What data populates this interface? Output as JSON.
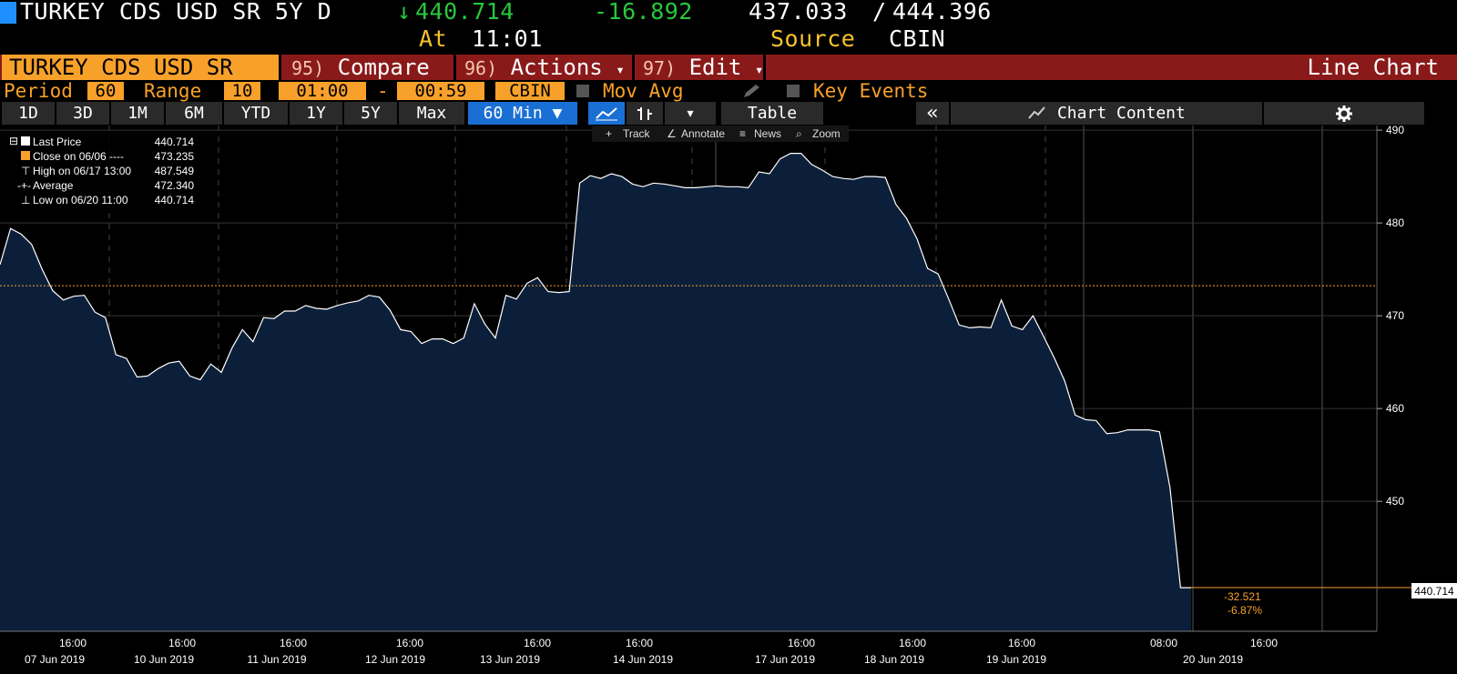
{
  "header": {
    "security": "TURKEY CDS USD SR 5Y D",
    "arrow": "↓",
    "last": "440.714",
    "change": "-16.892",
    "low": "437.033",
    "slash": "/",
    "high": "444.396",
    "at_label": "At",
    "time": "11:01",
    "source_label": "Source",
    "source": "CBIN",
    "marker_color": "#1f8fff"
  },
  "commandbar": {
    "ticker": "TURKEY CDS USD SR",
    "compare_num": "95)",
    "compare": "Compare",
    "actions_num": "96)",
    "actions": "Actions",
    "edit_num": "97)",
    "edit": "Edit",
    "caret": "▾",
    "title": "Line Chart",
    "bar_color": "#8a1a1a"
  },
  "settings": {
    "period_label": "Period",
    "period_value": "60",
    "range_label": "Range",
    "range_value": "10",
    "start_time": "01:00",
    "dash": "-",
    "end_time": "00:59",
    "source": "CBIN",
    "movavg_label": "Mov Avg",
    "keyevents_label": "Key Events",
    "accent": "#f8a12a"
  },
  "toolbar": {
    "ranges": [
      "1D",
      "3D",
      "1M",
      "6M",
      "YTD",
      "1Y",
      "5Y",
      "Max"
    ],
    "interval": "60 Min ▼",
    "caret": "▾",
    "table": "Table",
    "collapse": "«",
    "chart_content": "Chart Content",
    "track": "Track",
    "annotate": "Annotate",
    "news": "News",
    "zoom": "Zoom"
  },
  "legend": {
    "last_label": "Last Price",
    "last_value": "440.714",
    "close_label": "Close on 06/06 ----",
    "close_value": "473.235",
    "high_label": "High on 06/17 13:00",
    "high_value": "487.549",
    "avg_label": "Average",
    "avg_value": "472.340",
    "low_label": "Low on 06/20 11:00",
    "low_value": "440.714"
  },
  "chart_data": {
    "type": "area",
    "series": [
      {
        "name": "Last Price",
        "values": [
          475.5,
          479.4,
          478.8,
          477.7,
          475.0,
          472.7,
          471.7,
          472.1,
          472.2,
          470.4,
          469.8,
          465.8,
          465.4,
          463.4,
          463.5,
          464.3,
          464.9,
          465.1,
          463.5,
          463.1,
          464.8,
          463.9,
          466.5,
          468.5,
          467.2,
          469.8,
          469.7,
          470.5,
          470.5,
          471.1,
          470.8,
          470.7,
          471.1,
          471.4,
          471.6,
          472.2,
          472.0,
          470.6,
          468.5,
          468.3,
          467.0,
          467.5,
          467.5,
          467.0,
          467.6,
          471.3,
          469.1,
          467.6,
          472.2,
          471.8,
          473.5,
          474.1,
          472.6,
          472.5,
          472.6,
          484.3,
          485.1,
          484.8,
          485.3,
          485.0,
          484.2,
          483.9,
          484.3,
          484.2,
          484.0,
          483.8,
          483.8,
          483.9,
          484.0,
          483.9,
          483.9,
          483.8,
          485.5,
          485.3,
          486.9,
          487.5,
          487.5,
          486.3,
          485.7,
          485.0,
          484.8,
          484.7,
          485.0,
          485.0,
          484.9,
          482.0,
          480.5,
          478.3,
          475.1,
          474.5,
          471.8,
          469.0,
          468.7,
          468.8,
          468.7,
          471.7,
          468.9,
          468.5,
          470.0,
          467.8,
          465.5,
          463.0,
          459.3,
          458.8,
          458.7,
          457.3,
          457.4,
          457.7,
          457.7,
          457.7,
          457.5,
          451.5,
          440.7,
          440.7
        ]
      }
    ],
    "x_labels": [
      {
        "time": "16:00",
        "date": "07 Jun 2019"
      },
      {
        "time": "16:00",
        "date": "10 Jun 2019"
      },
      {
        "time": "16:00",
        "date": "11 Jun 2019"
      },
      {
        "time": "16:00",
        "date": "12 Jun 2019"
      },
      {
        "time": "16:00",
        "date": "13 Jun 2019"
      },
      {
        "time": "16:00",
        "date": "14 Jun 2019"
      },
      {
        "time": "16:00",
        "date": "17 Jun 2019"
      },
      {
        "time": "16:00",
        "date": "18 Jun 2019"
      },
      {
        "time": "16:00",
        "date": "19 Jun 2019"
      },
      {
        "time": "08:00",
        "date": ""
      },
      {
        "time": "16:00",
        "date": "20 Jun 2019"
      }
    ],
    "y_ticks": [
      490,
      480,
      470,
      460,
      450
    ],
    "ylim": [
      436,
      490.5
    ],
    "reference_line": 473.235,
    "last_value_label": "440.714",
    "change_abs": "-32.521",
    "change_pct": "-6.87%",
    "line_color": "#ffffff",
    "fill_color": "#0c1f3a",
    "reference_color": "#f8a12a",
    "grid": true
  }
}
